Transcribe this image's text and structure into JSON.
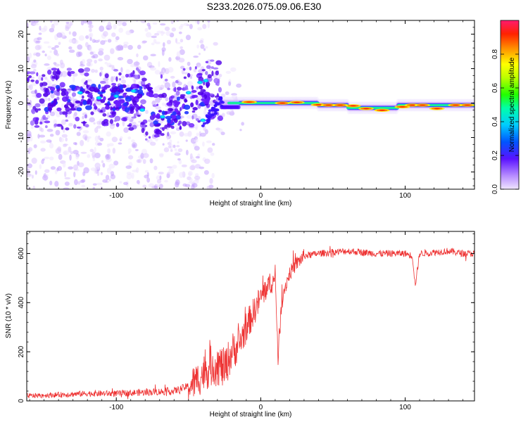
{
  "title": "S233.2026.075.09.06.E30",
  "chart_data": [
    {
      "type": "heatmap",
      "xlabel": "Height of straight line (km)",
      "ylabel": "Frequency (Hz)",
      "xlim": [
        -162,
        148
      ],
      "ylim": [
        -25,
        24
      ],
      "x_ticks": [
        -100,
        0,
        100
      ],
      "y_ticks": [
        -20,
        -10,
        0,
        10,
        20
      ],
      "grid": false,
      "colorbar": {
        "label": "Normalized spectral amplitude",
        "range": [
          0.0,
          1.0
        ],
        "ticks": [
          0.0,
          0.2,
          0.4,
          0.6,
          0.8
        ]
      },
      "description_points": [
        {
          "x": -30,
          "y": 0
        },
        {
          "x": 0,
          "y": 0
        },
        {
          "x": 50,
          "y": -1
        },
        {
          "x": 100,
          "y": -1
        },
        {
          "x": 148,
          "y": -1
        }
      ]
    },
    {
      "type": "line",
      "xlabel": "Height of straight line (km)",
      "ylabel": "SNR (10 * v/v)",
      "xlim": [
        -162,
        148
      ],
      "ylim": [
        0,
        690
      ],
      "x_ticks": [
        -100,
        0,
        100
      ],
      "y_ticks": [
        0,
        200,
        400,
        600
      ],
      "color": "#ee3333",
      "series": [
        {
          "x": [
            -162,
            -140,
            -120,
            -100,
            -80,
            -60,
            -50,
            -45,
            -40,
            -35,
            -30,
            -25,
            -20,
            -15,
            -10,
            -5,
            0,
            5,
            10,
            12,
            15,
            20,
            25,
            30,
            40,
            50,
            60,
            80,
            100,
            105,
            107,
            110,
            120,
            130,
            140,
            148
          ],
          "y": [
            20,
            25,
            30,
            30,
            35,
            40,
            60,
            80,
            110,
            140,
            150,
            130,
            200,
            230,
            300,
            360,
            420,
            470,
            490,
            200,
            430,
            520,
            560,
            590,
            600,
            605,
            610,
            600,
            600,
            590,
            470,
            600,
            605,
            610,
            600,
            600
          ]
        }
      ]
    }
  ]
}
